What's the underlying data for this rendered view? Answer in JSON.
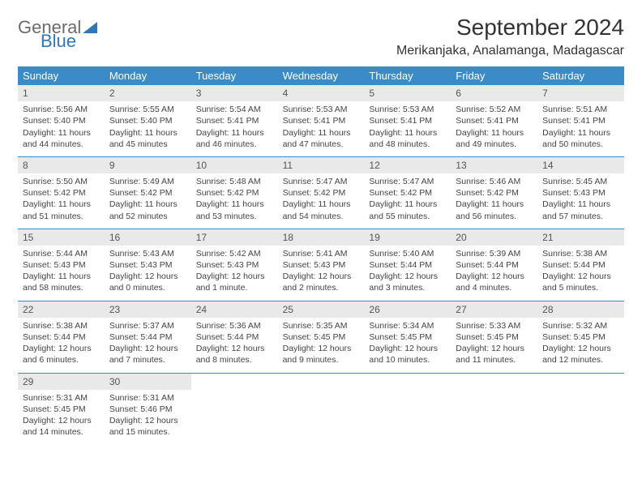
{
  "logo": {
    "line1": "General",
    "line2": "Blue"
  },
  "title": "September 2024",
  "location": "Merikanjaka, Analamanga, Madagascar",
  "colors": {
    "header_bg": "#3b8bc9",
    "header_text": "#ffffff",
    "daynum_bg": "#e9e9e9",
    "rule": "#3b8bc9",
    "logo_gray": "#6b6b6b",
    "logo_blue": "#2e77b8",
    "body_text": "#444444"
  },
  "day_names": [
    "Sunday",
    "Monday",
    "Tuesday",
    "Wednesday",
    "Thursday",
    "Friday",
    "Saturday"
  ],
  "days": [
    {
      "n": 1,
      "sr": "5:56 AM",
      "ss": "5:40 PM",
      "dl": "11 hours and 44 minutes."
    },
    {
      "n": 2,
      "sr": "5:55 AM",
      "ss": "5:40 PM",
      "dl": "11 hours and 45 minutes"
    },
    {
      "n": 3,
      "sr": "5:54 AM",
      "ss": "5:41 PM",
      "dl": "11 hours and 46 minutes."
    },
    {
      "n": 4,
      "sr": "5:53 AM",
      "ss": "5:41 PM",
      "dl": "11 hours and 47 minutes."
    },
    {
      "n": 5,
      "sr": "5:53 AM",
      "ss": "5:41 PM",
      "dl": "11 hours and 48 minutes."
    },
    {
      "n": 6,
      "sr": "5:52 AM",
      "ss": "5:41 PM",
      "dl": "11 hours and 49 minutes."
    },
    {
      "n": 7,
      "sr": "5:51 AM",
      "ss": "5:41 PM",
      "dl": "11 hours and 50 minutes."
    },
    {
      "n": 8,
      "sr": "5:50 AM",
      "ss": "5:42 PM",
      "dl": "11 hours and 51 minutes."
    },
    {
      "n": 9,
      "sr": "5:49 AM",
      "ss": "5:42 PM",
      "dl": "11 hours and 52 minutes"
    },
    {
      "n": 10,
      "sr": "5:48 AM",
      "ss": "5:42 PM",
      "dl": "11 hours and 53 minutes."
    },
    {
      "n": 11,
      "sr": "5:47 AM",
      "ss": "5:42 PM",
      "dl": "11 hours and 54 minutes."
    },
    {
      "n": 12,
      "sr": "5:47 AM",
      "ss": "5:42 PM",
      "dl": "11 hours and 55 minutes."
    },
    {
      "n": 13,
      "sr": "5:46 AM",
      "ss": "5:42 PM",
      "dl": "11 hours and 56 minutes."
    },
    {
      "n": 14,
      "sr": "5:45 AM",
      "ss": "5:43 PM",
      "dl": "11 hours and 57 minutes."
    },
    {
      "n": 15,
      "sr": "5:44 AM",
      "ss": "5:43 PM",
      "dl": "11 hours and 58 minutes."
    },
    {
      "n": 16,
      "sr": "5:43 AM",
      "ss": "5:43 PM",
      "dl": "12 hours and 0 minutes."
    },
    {
      "n": 17,
      "sr": "5:42 AM",
      "ss": "5:43 PM",
      "dl": "12 hours and 1 minute."
    },
    {
      "n": 18,
      "sr": "5:41 AM",
      "ss": "5:43 PM",
      "dl": "12 hours and 2 minutes."
    },
    {
      "n": 19,
      "sr": "5:40 AM",
      "ss": "5:44 PM",
      "dl": "12 hours and 3 minutes."
    },
    {
      "n": 20,
      "sr": "5:39 AM",
      "ss": "5:44 PM",
      "dl": "12 hours and 4 minutes."
    },
    {
      "n": 21,
      "sr": "5:38 AM",
      "ss": "5:44 PM",
      "dl": "12 hours and 5 minutes."
    },
    {
      "n": 22,
      "sr": "5:38 AM",
      "ss": "5:44 PM",
      "dl": "12 hours and 6 minutes."
    },
    {
      "n": 23,
      "sr": "5:37 AM",
      "ss": "5:44 PM",
      "dl": "12 hours and 7 minutes."
    },
    {
      "n": 24,
      "sr": "5:36 AM",
      "ss": "5:44 PM",
      "dl": "12 hours and 8 minutes."
    },
    {
      "n": 25,
      "sr": "5:35 AM",
      "ss": "5:45 PM",
      "dl": "12 hours and 9 minutes."
    },
    {
      "n": 26,
      "sr": "5:34 AM",
      "ss": "5:45 PM",
      "dl": "12 hours and 10 minutes."
    },
    {
      "n": 27,
      "sr": "5:33 AM",
      "ss": "5:45 PM",
      "dl": "12 hours and 11 minutes."
    },
    {
      "n": 28,
      "sr": "5:32 AM",
      "ss": "5:45 PM",
      "dl": "12 hours and 12 minutes."
    },
    {
      "n": 29,
      "sr": "5:31 AM",
      "ss": "5:45 PM",
      "dl": "12 hours and 14 minutes."
    },
    {
      "n": 30,
      "sr": "5:31 AM",
      "ss": "5:46 PM",
      "dl": "12 hours and 15 minutes."
    }
  ],
  "labels": {
    "sunrise": "Sunrise:",
    "sunset": "Sunset:",
    "daylight": "Daylight:"
  },
  "layout": {
    "start_weekday": 0,
    "columns": 7,
    "rows": 5,
    "cell_font_size": 10.5,
    "header_font_size": 13
  }
}
